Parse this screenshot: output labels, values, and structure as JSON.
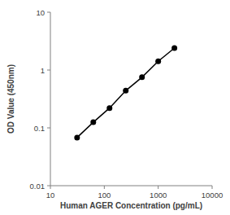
{
  "chart_data": {
    "type": "line",
    "x_label": "Human AGER Concentration (pg/mL)",
    "y_label": "OD Value (450nm)",
    "x": [
      31.25,
      62.5,
      125,
      250,
      500,
      1000,
      2000
    ],
    "values": [
      0.068,
      0.125,
      0.22,
      0.44,
      0.75,
      1.42,
      2.4
    ],
    "color": "#000000",
    "marker": "circle",
    "log": true,
    "grid": false,
    "xlim": [
      10,
      10000
    ],
    "xticks": [
      10,
      100,
      1000,
      10000
    ],
    "ylim": [
      0.01,
      10
    ],
    "yticks": [
      0.01,
      0.1,
      1,
      10
    ]
  }
}
